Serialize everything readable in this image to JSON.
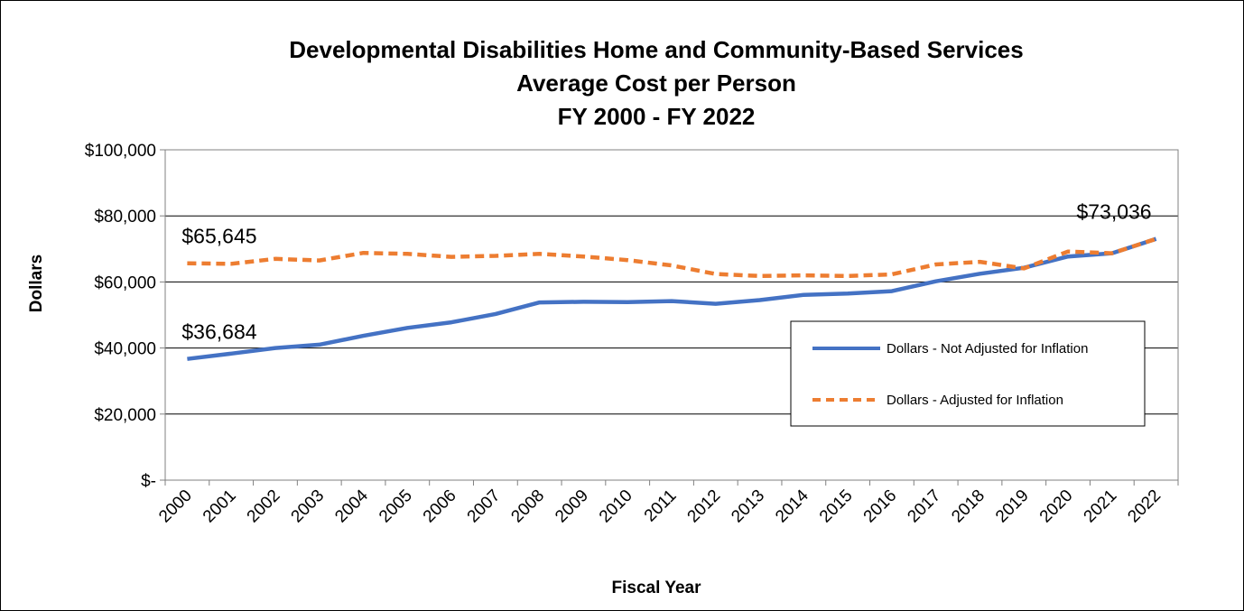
{
  "chart_data": {
    "type": "line",
    "title_lines": [
      "Developmental Disabilities Home and Community-Based Services",
      "Average Cost per Person",
      "FY 2000 - FY 2022"
    ],
    "xlabel": "Fiscal Year",
    "ylabel": "Dollars",
    "categories": [
      "2000",
      "2001",
      "2002",
      "2003",
      "2004",
      "2005",
      "2006",
      "2007",
      "2008",
      "2009",
      "2010",
      "2011",
      "2012",
      "2013",
      "2014",
      "2015",
      "2016",
      "2017",
      "2018",
      "2019",
      "2020",
      "2021",
      "2022"
    ],
    "ylim": [
      0,
      100000
    ],
    "yticks": [
      0,
      20000,
      40000,
      60000,
      80000,
      100000
    ],
    "ytick_labels": [
      "$-",
      "$20,000",
      "$40,000",
      "$60,000",
      "$80,000",
      "$100,000"
    ],
    "grid": "horizontal",
    "legend_position": "right",
    "series": [
      {
        "name": "Dollars - Not Adjusted for Inflation",
        "color": "#4472C4",
        "style": "solid",
        "values": [
          36684,
          38300,
          40000,
          41000,
          43700,
          46100,
          47800,
          50300,
          53800,
          54000,
          53900,
          54200,
          53400,
          54500,
          56100,
          56500,
          57200,
          60200,
          62500,
          64300,
          67700,
          68700,
          73036
        ]
      },
      {
        "name": "Dollars - Adjusted for Inflation",
        "color": "#ED7D31",
        "style": "dashed",
        "values": [
          65645,
          65500,
          67000,
          66500,
          68800,
          68500,
          67600,
          67900,
          68500,
          67700,
          66600,
          65000,
          62400,
          61800,
          62000,
          61800,
          62300,
          65300,
          66100,
          64100,
          69200,
          68700,
          73036
        ]
      }
    ],
    "annotations": [
      {
        "text": "$65,645",
        "series": 1,
        "index": 0
      },
      {
        "text": "$36,684",
        "series": 0,
        "index": 0
      },
      {
        "text": "$73,036",
        "series": 1,
        "index": 22
      }
    ]
  }
}
